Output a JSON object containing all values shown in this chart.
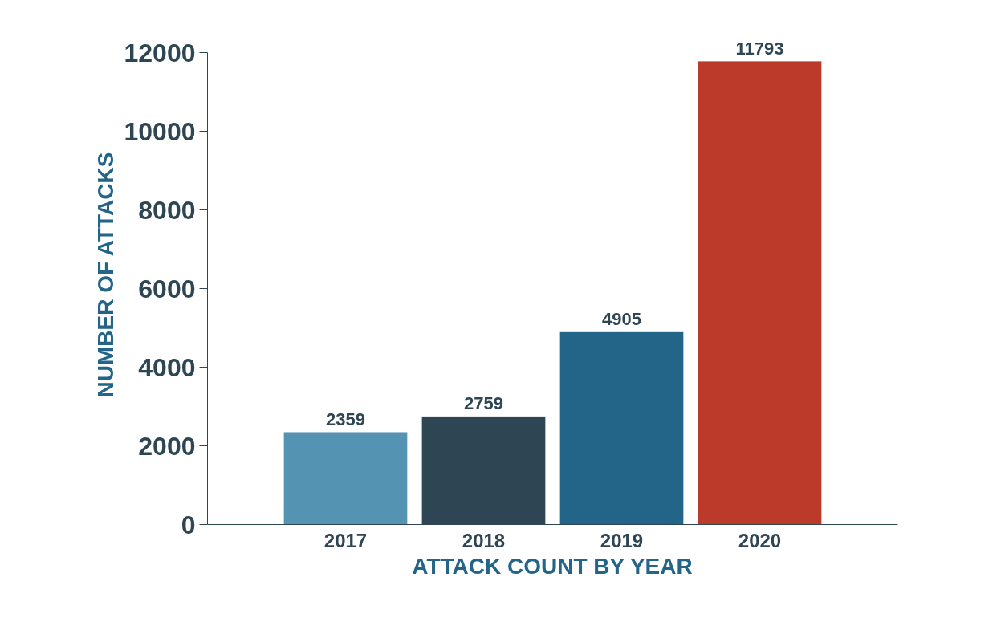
{
  "chart_data": {
    "type": "bar",
    "xlabel": "ATTACK COUNT BY YEAR",
    "ylabel": "NUMBER OF ATTACKS",
    "categories": [
      "2017",
      "2018",
      "2019",
      "2020"
    ],
    "values": [
      2359,
      2759,
      4905,
      11793
    ],
    "colors": [
      "#5593b2",
      "#2e4653",
      "#236589",
      "#bc3a29"
    ],
    "ylim": [
      0,
      12000
    ],
    "yticks": [
      0,
      2000,
      4000,
      6000,
      8000,
      10000,
      12000
    ],
    "grid": false,
    "data_labels": true
  }
}
